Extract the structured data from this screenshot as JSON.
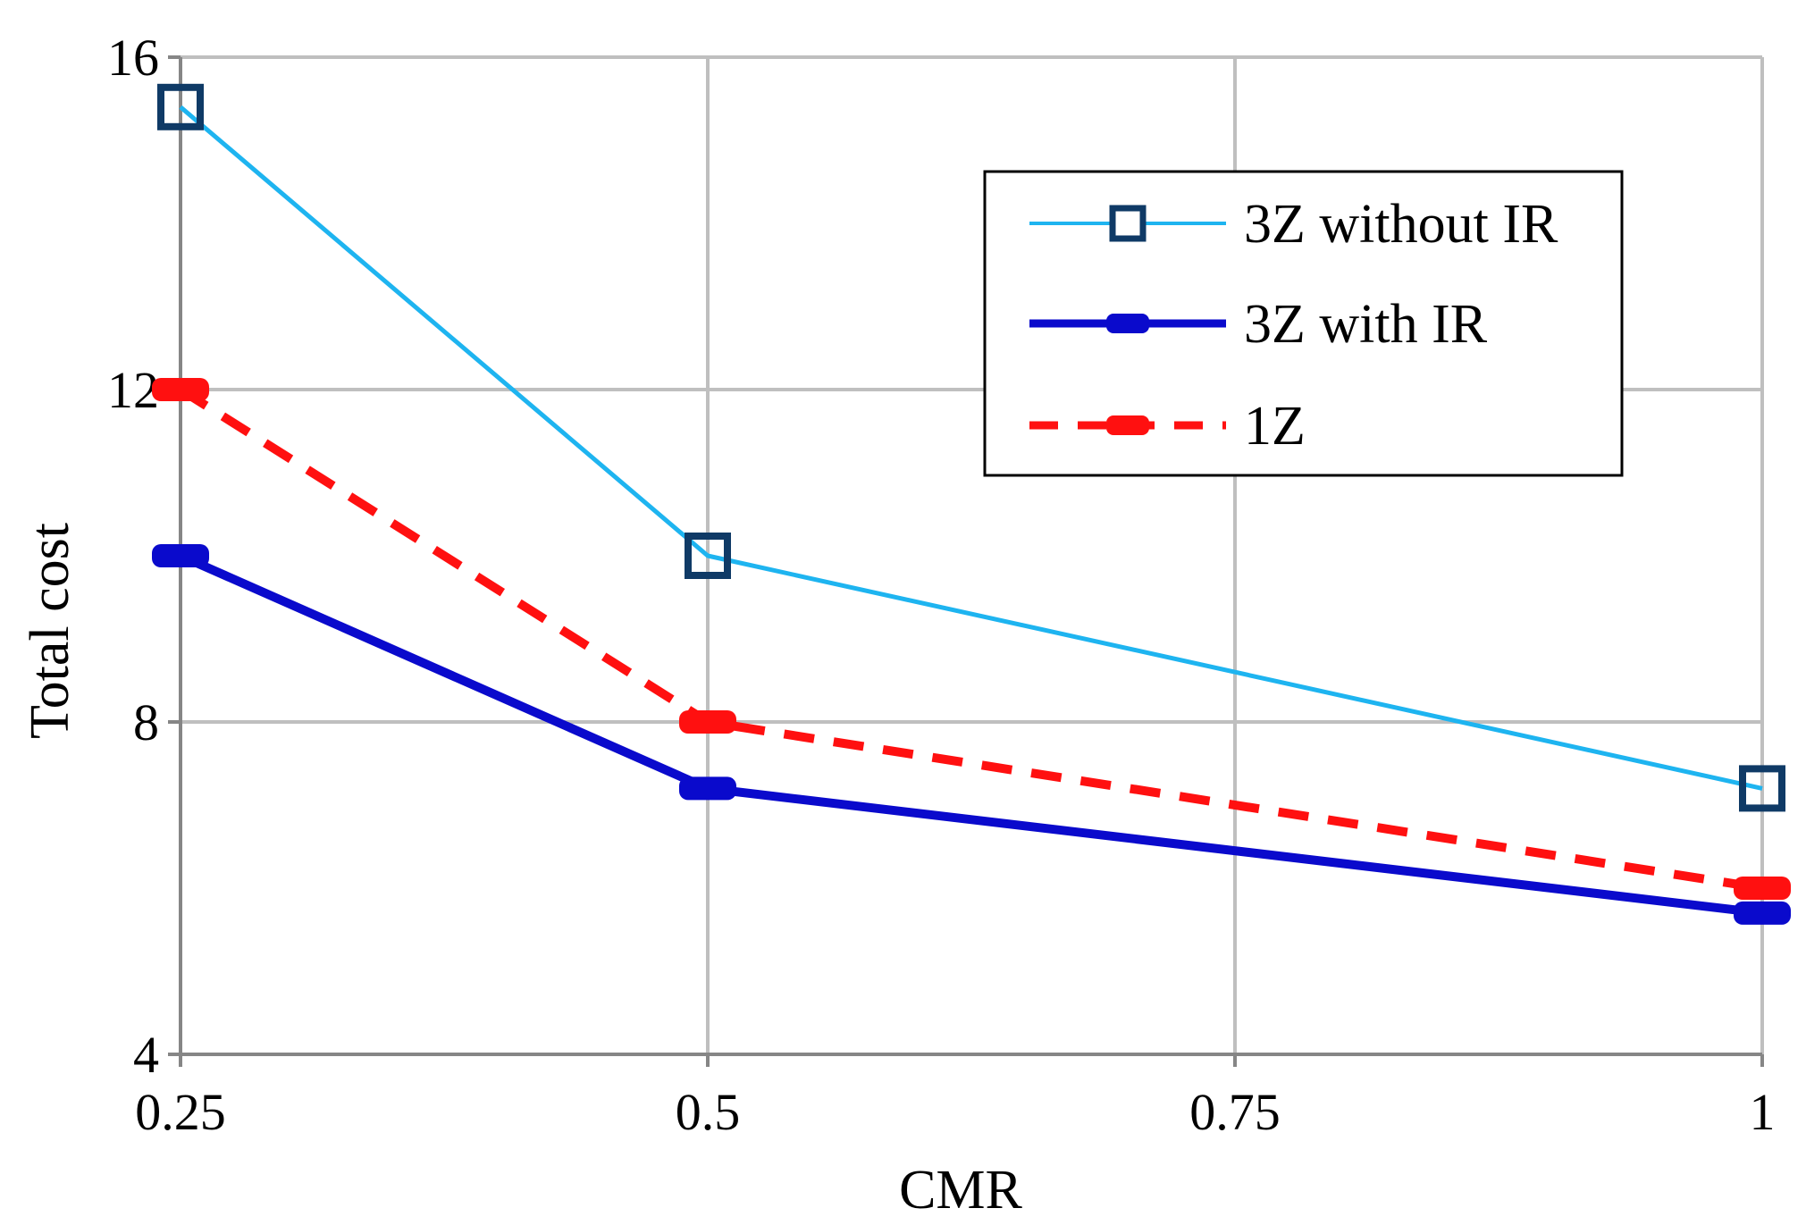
{
  "chart_data": {
    "type": "line",
    "title": "",
    "xlabel": "CMR",
    "ylabel": "Total cost",
    "x": [
      0.25,
      0.5,
      1
    ],
    "x_ticks": [
      "0.25",
      "0.5",
      "0.75",
      "1"
    ],
    "xlim": [
      0.25,
      1
    ],
    "y_ticks": [
      "4",
      "8",
      "12",
      "16"
    ],
    "ylim": [
      4,
      16
    ],
    "grid": true,
    "legend_position": "top-right",
    "series": [
      {
        "name": "3Z without IR",
        "values": [
          15.4,
          10.0,
          7.2
        ],
        "color": "#1EB4F0",
        "marker": "open-square",
        "style": "solid"
      },
      {
        "name": "3Z with IR",
        "values": [
          10.0,
          7.2,
          5.7
        ],
        "color": "#0A0ACC",
        "marker": "filled-rect",
        "style": "solid"
      },
      {
        "name": "1Z",
        "values": [
          12.0,
          8.0,
          6.0
        ],
        "color": "#FF1010",
        "marker": "filled-rect",
        "style": "dashed"
      }
    ]
  }
}
